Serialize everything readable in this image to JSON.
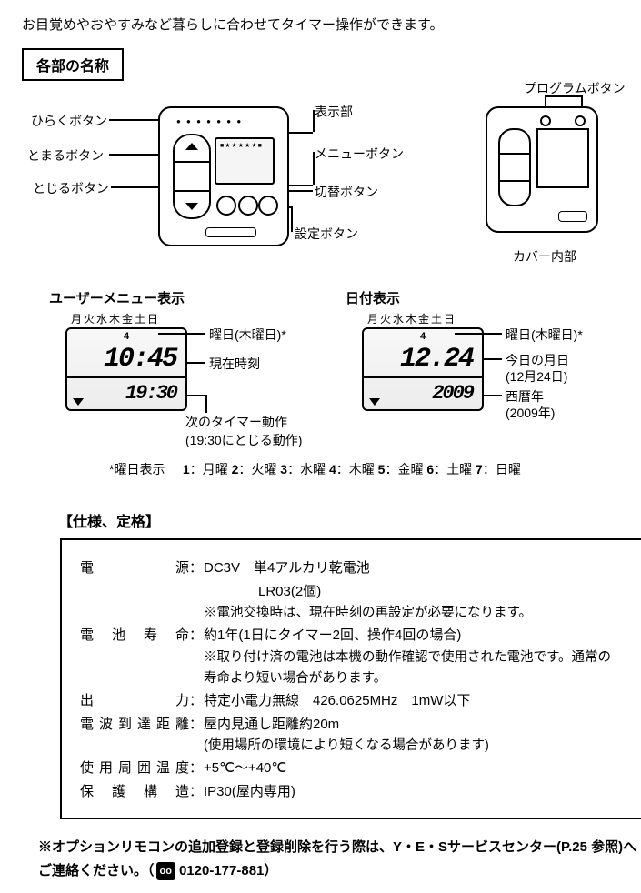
{
  "intro": "お目覚めやおやすみなど暮らしに合わせてタイマー操作ができます。",
  "section1_header": "各部の名称",
  "main_device": {
    "labels": {
      "open_btn": "ひらくボタン",
      "stop_btn": "とまるボタン",
      "close_btn": "とじるボタン",
      "display": "表示部",
      "menu_btn": "メニューボタン",
      "switch_btn": "切替ボタン",
      "set_btn": "設定ボタン"
    },
    "border_color": "#000000",
    "bg_color": "#ffffff"
  },
  "cover_device": {
    "label": "プログラムボタン",
    "caption": "カバー内部"
  },
  "displays": {
    "user_menu": {
      "title": "ユーザーメニュー表示",
      "dow_row": "月火水木金土日",
      "dow_indicator": "4",
      "time": "10:45",
      "next_timer": "19:30",
      "labels": {
        "dow": "曜日(木曜日)*",
        "now": "現在時刻",
        "next": "次のタイマー動作",
        "next_sub": "(19:30にとじる動作)"
      }
    },
    "date": {
      "title": "日付表示",
      "dow_row": "月火水木金土日",
      "dow_indicator": "4",
      "date_mmdd": "12.24",
      "year": "2009",
      "labels": {
        "dow": "曜日(木曜日)*",
        "today": "今日の月日",
        "today_sub": "(12月24日)",
        "year": "西暦年",
        "year_sub": "(2009年)"
      }
    },
    "day_legend": {
      "prefix": "*曜日表示",
      "items": [
        "1：月曜",
        "2：火曜",
        "3：水曜",
        "4：木曜",
        "5：金曜",
        "6：土曜",
        "7：日曜"
      ]
    }
  },
  "spec": {
    "title": "【仕様、定格】",
    "rows": [
      {
        "k": "電　　　源",
        "v": "DC3V　単4アルカリ乾電池"
      },
      {
        "k": "",
        "v": "　　　　LR03(2個)"
      },
      {
        "k": "_note",
        "v": "※電池交換時は、現在時刻の再設定が必要になります。"
      },
      {
        "k": "電 池 寿 命",
        "v": "約1年(1日にタイマー2回、操作4回の場合)"
      },
      {
        "k": "_note",
        "v": "※取り付け済の電池は本機の動作確認で使用された電池です。通常の寿命より短い場合があります。"
      },
      {
        "k": "出　　　力",
        "v": "特定小電力無線　426.0625MHz　1mW以下"
      },
      {
        "k": "電波到達距離",
        "v": "屋内見通し距離約20m"
      },
      {
        "k": "_note",
        "v": "(使用場所の環境により短くなる場合があります)"
      },
      {
        "k": "使用周囲温度",
        "v": "+5℃〜+40℃"
      },
      {
        "k": "保 護 構 造",
        "v": "IP30(屋内専用)"
      }
    ]
  },
  "footer": {
    "text1": "※オプションリモコンの追加登録と登録削除を行う際は、Y・E・Sサービスセンター(P.25 参照)へご連絡ください。（",
    "tel_icon": "〓",
    "tel": "0120-177-881）"
  }
}
